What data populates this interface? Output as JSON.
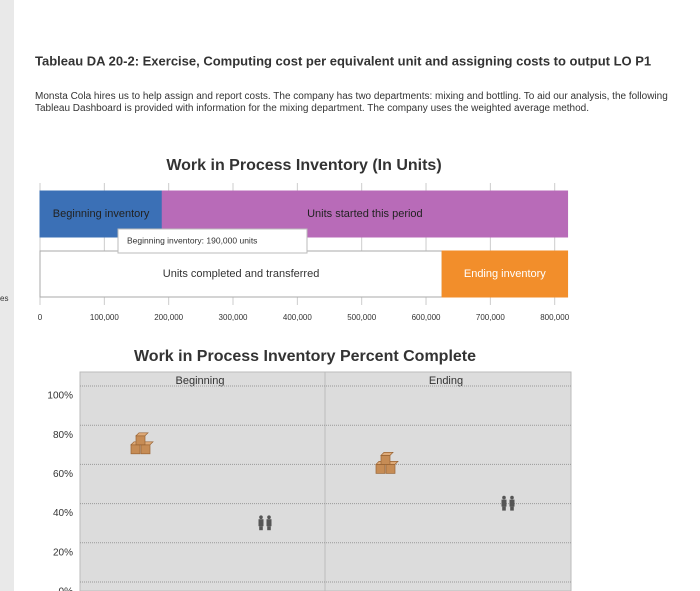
{
  "side_fragment": "es",
  "header": {
    "title": "Tableau DA 20-2: Exercise, Computing cost per equivalent unit and assigning costs to output LO P1",
    "text": "Monsta Cola hires us to help assign and report costs. The company has two departments: mixing and bottling. To aid our analysis, the following Tableau Dashboard is provided with information for the mixing department. The company uses the weighted average method."
  },
  "chart_data": [
    {
      "type": "bar",
      "orientation": "horizontal",
      "stacked": true,
      "title": "Work in Process Inventory (In Units)",
      "categories": [
        null,
        null
      ],
      "series": [
        {
          "name": "Beginning inventory",
          "color": "#3b70b6",
          "values": [
            190000,
            null
          ]
        },
        {
          "name": "Units started this period",
          "color": "#b86bb8",
          "values": [
            630000,
            null
          ]
        },
        {
          "name": "Units completed and transferred",
          "color": "#ffffff",
          "values": [
            null,
            625000
          ]
        },
        {
          "name": "Ending inventory",
          "color": "#f28e2b",
          "values": [
            null,
            195000
          ]
        }
      ],
      "tooltip": {
        "text": "Beginning inventory: 190,000 units",
        "value": 190000
      },
      "xlim": [
        0,
        830000
      ],
      "xticks": [
        0,
        {
          "value": 100000,
          "label": "100,000"
        },
        {
          "value": 200000,
          "label": "200,000"
        },
        {
          "value": 300000,
          "label": "300,000"
        },
        {
          "value": 400000,
          "label": "400,000"
        },
        {
          "value": 500000,
          "label": "500,000"
        },
        {
          "value": 600000,
          "label": "600,000"
        },
        {
          "value": 700000,
          "label": "700,000"
        },
        {
          "value": 800000,
          "label": "800,000"
        }
      ]
    },
    {
      "type": "scatter",
      "title": "Work in Process Inventory Percent Complete",
      "categories": [
        "Beginning",
        "Ending"
      ],
      "series": [
        {
          "color": "#c68c55",
          "marker": "boxes",
          "values": [
            70,
            60
          ]
        },
        {
          "color": "#555555",
          "marker": "people",
          "values": [
            30,
            40
          ]
        }
      ],
      "ylim": [
        0,
        100
      ],
      "yticks": [
        {
          "value": 0,
          "label": "0%"
        },
        {
          "value": 20,
          "label": "20%"
        },
        {
          "value": 40,
          "label": "40%"
        },
        {
          "value": 60,
          "label": "60%"
        },
        {
          "value": 80,
          "label": "80%"
        },
        {
          "value": 100,
          "label": "100%"
        }
      ],
      "grid": true
    }
  ]
}
